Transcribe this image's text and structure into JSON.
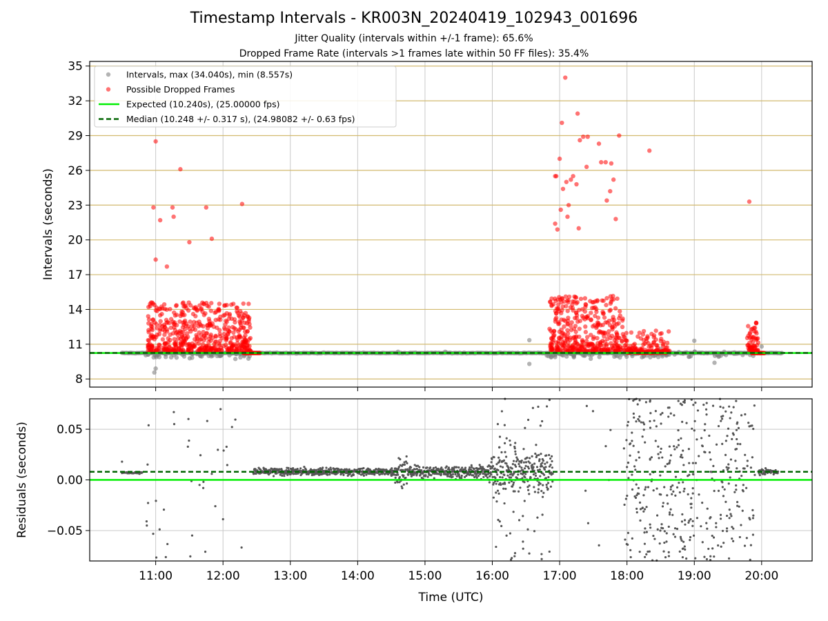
{
  "figure": {
    "title": "Timestamp Intervals - KR003N_20240419_102943_001696",
    "subtitle_1": "Jitter Quality (intervals within +/-1 frame): 65.6%",
    "subtitle_2": "Dropped Frame Rate (intervals >1 frames late within 50 FF files): 35.4%"
  },
  "colors": {
    "intervals": "#808080",
    "dropped": "#ff0000",
    "expected": "#00ee00",
    "median": "#006400",
    "hgrid": "#d2b96e",
    "vgrid": "#c8c8c8",
    "residual_points": "#555555"
  },
  "chart_data": [
    {
      "type": "scatter",
      "panel": "top",
      "ylabel": "Intervals (seconds)",
      "xlabel": "",
      "ylim": [
        7.3,
        35.4
      ],
      "xlim_hours": [
        10.02,
        20.75
      ],
      "yticks": [
        "8",
        "11",
        "14",
        "17",
        "20",
        "23",
        "26",
        "29",
        "32",
        "35"
      ],
      "grid": "horizontal at every y tick, vertical at every hour",
      "legend_position": "top-left",
      "legend": [
        "Intervals, max (34.040s), min (8.557s)",
        "Possible Dropped Frames",
        "Expected (10.240s), (25.00000 fps)",
        "Median (10.248 +/- 0.317 s), (24.98082 +/- 0.63 fps)"
      ],
      "expected_line": 10.24,
      "median_line": 10.248,
      "interval_max": 34.04,
      "interval_min": 8.557,
      "clusters_note": "dense bands of red points near 10.5–15 s between 10:50–12:25, 16:50–18:35 and 19:45–19:55; grey points otherwise sit on 10.24 s",
      "outliers": [
        {
          "x": "10:58",
          "y": 22.8
        },
        {
          "x": "11:00",
          "y": 28.5
        },
        {
          "x": "11:00",
          "y": 18.3
        },
        {
          "x": "11:04",
          "y": 21.7
        },
        {
          "x": "11:10",
          "y": 17.7
        },
        {
          "x": "11:15",
          "y": 22.8
        },
        {
          "x": "11:16",
          "y": 22.0
        },
        {
          "x": "11:22",
          "y": 26.1
        },
        {
          "x": "11:30",
          "y": 19.8
        },
        {
          "x": "11:45",
          "y": 22.8
        },
        {
          "x": "11:50",
          "y": 20.1
        },
        {
          "x": "12:17",
          "y": 23.1
        },
        {
          "x": "16:56",
          "y": 25.5
        },
        {
          "x": "16:56",
          "y": 21.4
        },
        {
          "x": "16:57",
          "y": 25.5
        },
        {
          "x": "16:58",
          "y": 20.9
        },
        {
          "x": "17:00",
          "y": 27.0
        },
        {
          "x": "17:01",
          "y": 22.6
        },
        {
          "x": "17:02",
          "y": 30.1
        },
        {
          "x": "17:03",
          "y": 24.4
        },
        {
          "x": "17:05",
          "y": 34.0
        },
        {
          "x": "17:06",
          "y": 25.0
        },
        {
          "x": "17:07",
          "y": 22.0
        },
        {
          "x": "17:08",
          "y": 23.0
        },
        {
          "x": "17:10",
          "y": 25.2
        },
        {
          "x": "17:12",
          "y": 25.5
        },
        {
          "x": "17:15",
          "y": 24.8
        },
        {
          "x": "17:16",
          "y": 30.9
        },
        {
          "x": "17:17",
          "y": 21.0
        },
        {
          "x": "17:18",
          "y": 28.6
        },
        {
          "x": "17:21",
          "y": 28.9
        },
        {
          "x": "17:24",
          "y": 26.3
        },
        {
          "x": "17:25",
          "y": 28.9
        },
        {
          "x": "17:35",
          "y": 28.3
        },
        {
          "x": "17:37",
          "y": 26.7
        },
        {
          "x": "17:41",
          "y": 26.7
        },
        {
          "x": "17:42",
          "y": 23.4
        },
        {
          "x": "17:45",
          "y": 24.2
        },
        {
          "x": "17:46",
          "y": 26.6
        },
        {
          "x": "17:48",
          "y": 25.2
        },
        {
          "x": "17:50",
          "y": 21.8
        },
        {
          "x": "17:53",
          "y": 29.0
        },
        {
          "x": "18:20",
          "y": 27.7
        },
        {
          "x": "19:49",
          "y": 23.3
        }
      ]
    },
    {
      "type": "scatter",
      "panel": "bottom",
      "ylabel": "Residuals (seconds)",
      "xlabel": "Time (UTC)",
      "ylim": [
        -0.08,
        0.08
      ],
      "xlim_hours": [
        10.02,
        20.75
      ],
      "yticks": [
        "0.05",
        "0.00",
        "−0.05"
      ],
      "xticks": [
        "11:00",
        "12:00",
        "13:00",
        "14:00",
        "15:00",
        "16:00",
        "17:00",
        "18:00",
        "19:00",
        "20:00"
      ],
      "zero_line": 0.0,
      "median_offset_line": 0.008,
      "clusters_note": "tight band near +0.008 s from 12:25–14:35 and 15:00–16:00; scattered spread of roughly ±0.08 s from 16:00–17:00 and 18:00–19:45"
    }
  ]
}
